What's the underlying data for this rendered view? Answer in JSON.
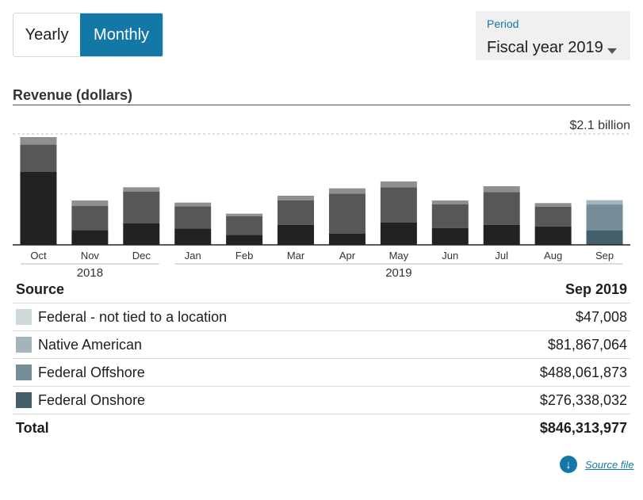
{
  "toggle": {
    "yearly_label": "Yearly",
    "monthly_label": "Monthly",
    "selected": "Monthly"
  },
  "period": {
    "label": "Period",
    "value": "Fiscal year 2019"
  },
  "section_title": "Revenue (dollars)",
  "chart_data": {
    "type": "bar",
    "stacked": true,
    "max_label": "$2.1 billion",
    "ylim": [
      0,
      2.1
    ],
    "categories": [
      "Oct",
      "Nov",
      "Dec",
      "Jan",
      "Feb",
      "Mar",
      "Apr",
      "May",
      "Jun",
      "Jul",
      "Aug",
      "Sep"
    ],
    "year_groups": [
      {
        "label": "2018",
        "months": [
          "Oct",
          "Nov",
          "Dec"
        ]
      },
      {
        "label": "2019",
        "months": [
          "Jan",
          "Feb",
          "Mar",
          "Apr",
          "May",
          "Jun",
          "Jul",
          "Aug",
          "Sep"
        ]
      }
    ],
    "series": [
      {
        "name": "Federal Onshore",
        "values": [
          1.38,
          0.28,
          0.41,
          0.31,
          0.19,
          0.38,
          0.21,
          0.42,
          0.32,
          0.38,
          0.35,
          0.276
        ]
      },
      {
        "name": "Federal Offshore",
        "values": [
          0.52,
          0.46,
          0.6,
          0.42,
          0.35,
          0.46,
          0.76,
          0.67,
          0.45,
          0.62,
          0.37,
          0.488
        ]
      },
      {
        "name": "Native American",
        "values": [
          0.14,
          0.1,
          0.08,
          0.07,
          0.05,
          0.09,
          0.1,
          0.11,
          0.07,
          0.11,
          0.07,
          0.082
        ]
      },
      {
        "name": "Federal - not tied to a location",
        "values": [
          0,
          0,
          0,
          0,
          0,
          0,
          0,
          0,
          0,
          0,
          0,
          4.7e-05
        ]
      }
    ],
    "colors_default": [
      "#222222",
      "#575757",
      "#8f8f8f",
      "#b5b5b5"
    ],
    "colors_selected": [
      "#445f6b",
      "#758d96",
      "#a3b4ba",
      "#cfd9dc"
    ],
    "selected_index": 11
  },
  "table": {
    "header": {
      "source": "Source",
      "period": "Sep 2019"
    },
    "rows": [
      {
        "label": "Federal - not tied to a location",
        "value": "$47,008",
        "color": "#cfd9dc"
      },
      {
        "label": "Native American",
        "value": "$81,867,064",
        "color": "#a3b4ba"
      },
      {
        "label": "Federal Offshore",
        "value": "$488,061,873",
        "color": "#758d96"
      },
      {
        "label": "Federal Onshore",
        "value": "$276,338,032",
        "color": "#445f6b"
      }
    ],
    "total": {
      "label": "Total",
      "value": "$846,313,977"
    }
  },
  "source_link": {
    "label": "Source file",
    "icon": "download-icon"
  }
}
